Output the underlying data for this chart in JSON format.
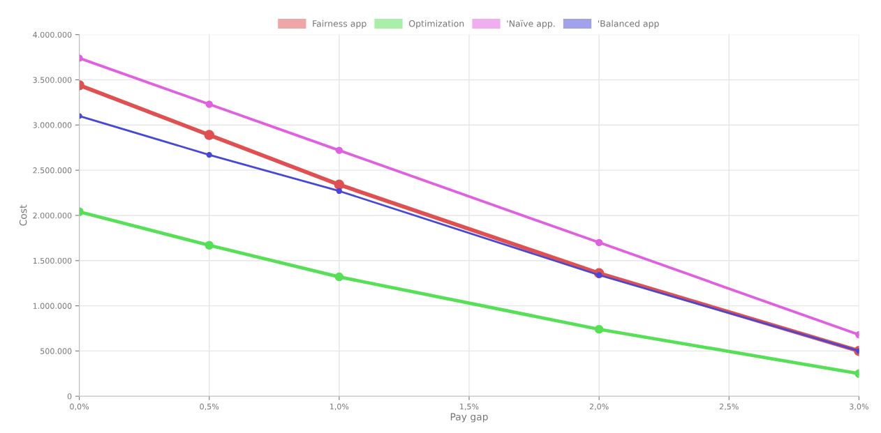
{
  "chart_data": {
    "type": "line",
    "xlabel": "Pay gap",
    "ylabel": "Cost",
    "x": [
      0,
      0.5,
      1.0,
      2.0,
      3.0
    ],
    "series": [
      {
        "name": "Fairness app",
        "color": "#e05050",
        "values": [
          3440000,
          2890000,
          2340000,
          1360000,
          500000
        ]
      },
      {
        "name": "Optimization",
        "color": "#55e055",
        "values": [
          2040000,
          1670000,
          1320000,
          740000,
          250000
        ]
      },
      {
        "name": "'Naïve app.",
        "color": "#e060e0",
        "values": [
          3740000,
          3230000,
          2720000,
          1700000,
          680000
        ]
      },
      {
        "name": "'Balanced app",
        "color": "#4848d8",
        "values": [
          3100000,
          2670000,
          2270000,
          1340000,
          500000
        ]
      }
    ],
    "xlim": [
      0,
      3
    ],
    "xticks": [
      {
        "value": 0,
        "label": "0,0%"
      },
      {
        "value": 0.5,
        "label": "0,5%"
      },
      {
        "value": 1.0,
        "label": "1,0%"
      },
      {
        "value": 1.5,
        "label": "1,5%"
      },
      {
        "value": 2.0,
        "label": "2,0%"
      },
      {
        "value": 2.5,
        "label": "2,5%"
      },
      {
        "value": 3.0,
        "label": "3,0%"
      }
    ],
    "ylim": [
      0,
      4000000
    ],
    "yticks": [
      0,
      {
        "value": 500000,
        "label": "500.000"
      },
      {
        "value": 1000000,
        "label": "1.000.000"
      },
      {
        "value": 1500000,
        "label": "1.500.000"
      },
      {
        "value": 2000000,
        "label": "2.000.000"
      },
      {
        "value": 2500000,
        "label": "2.500.000"
      },
      {
        "value": 3000000,
        "label": "3.000.000"
      },
      {
        "value": 3500000,
        "label": "3.500.000"
      },
      {
        "value": 4000000,
        "label": "4.000.000"
      }
    ],
    "grid": true,
    "legend": "top",
    "marker": "circle",
    "line_style": "solid"
  }
}
